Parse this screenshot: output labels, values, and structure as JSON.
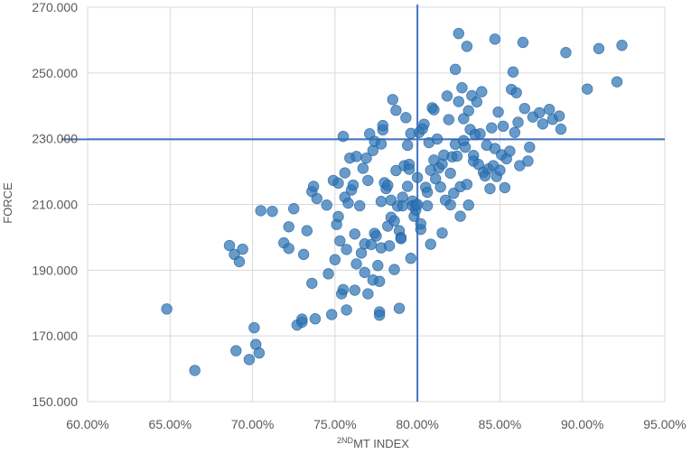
{
  "chart_data": {
    "type": "scatter",
    "xlabel_sup": "2ND",
    "xlabel_main": "MT INDEX",
    "ylabel": "FORCE",
    "xlim": [
      0.6,
      0.95
    ],
    "ylim": [
      150,
      270
    ],
    "x_ticks": [
      0.6,
      0.65,
      0.7,
      0.75,
      0.8,
      0.85,
      0.9,
      0.95
    ],
    "x_tick_labels": [
      "60.00%",
      "65.00%",
      "70.00%",
      "75.00%",
      "80.00%",
      "85.00%",
      "90.00%",
      "95.00%"
    ],
    "y_ticks": [
      150,
      170,
      190,
      210,
      230,
      250,
      270
    ],
    "y_tick_labels": [
      "150.000",
      "170.000",
      "190.000",
      "210.000",
      "230.000",
      "250.000",
      "270.000"
    ],
    "grid": true,
    "point_color": "#2e75b6",
    "reference_color": "#4472c4",
    "reference_lines": {
      "x": 0.8,
      "y": 229.8
    },
    "points": [
      [
        0.648,
        178.2
      ],
      [
        0.665,
        159.5
      ],
      [
        0.686,
        197.5
      ],
      [
        0.689,
        194.8
      ],
      [
        0.69,
        165.5
      ],
      [
        0.692,
        192.6
      ],
      [
        0.694,
        196.4
      ],
      [
        0.698,
        162.8
      ],
      [
        0.701,
        172.5
      ],
      [
        0.702,
        167.4
      ],
      [
        0.704,
        164.8
      ],
      [
        0.705,
        208.1
      ],
      [
        0.712,
        207.9
      ],
      [
        0.719,
        198.3
      ],
      [
        0.722,
        203.2
      ],
      [
        0.722,
        196.6
      ],
      [
        0.725,
        208.7
      ],
      [
        0.727,
        173.3
      ],
      [
        0.73,
        174.2
      ],
      [
        0.73,
        175.1
      ],
      [
        0.731,
        194.8
      ],
      [
        0.733,
        202.0
      ],
      [
        0.736,
        186.0
      ],
      [
        0.736,
        213.9
      ],
      [
        0.737,
        215.5
      ],
      [
        0.738,
        175.2
      ],
      [
        0.739,
        211.8
      ],
      [
        0.745,
        209.8
      ],
      [
        0.746,
        188.9
      ],
      [
        0.748,
        176.5
      ],
      [
        0.749,
        217.3
      ],
      [
        0.75,
        193.2
      ],
      [
        0.751,
        203.9
      ],
      [
        0.752,
        206.3
      ],
      [
        0.752,
        216.5
      ],
      [
        0.753,
        198.9
      ],
      [
        0.754,
        182.8
      ],
      [
        0.755,
        184.1
      ],
      [
        0.755,
        230.7
      ],
      [
        0.756,
        212.2
      ],
      [
        0.756,
        219.6
      ],
      [
        0.757,
        196.3
      ],
      [
        0.757,
        177.9
      ],
      [
        0.758,
        210.4
      ],
      [
        0.759,
        224.1
      ],
      [
        0.76,
        214.4
      ],
      [
        0.761,
        215.9
      ],
      [
        0.762,
        201.0
      ],
      [
        0.762,
        183.9
      ],
      [
        0.763,
        191.9
      ],
      [
        0.763,
        224.6
      ],
      [
        0.765,
        209.6
      ],
      [
        0.766,
        195.2
      ],
      [
        0.767,
        221.0
      ],
      [
        0.768,
        198.0
      ],
      [
        0.768,
        189.3
      ],
      [
        0.769,
        224.1
      ],
      [
        0.77,
        217.3
      ],
      [
        0.77,
        182.8
      ],
      [
        0.771,
        231.5
      ],
      [
        0.772,
        197.8
      ],
      [
        0.773,
        187.0
      ],
      [
        0.773,
        226.4
      ],
      [
        0.774,
        229.2
      ],
      [
        0.774,
        201.2
      ],
      [
        0.775,
        200.4
      ],
      [
        0.776,
        191.4
      ],
      [
        0.777,
        177.3
      ],
      [
        0.777,
        176.3
      ],
      [
        0.777,
        186.6
      ],
      [
        0.778,
        196.8
      ],
      [
        0.778,
        210.9
      ],
      [
        0.778,
        228.4
      ],
      [
        0.779,
        232.7
      ],
      [
        0.779,
        234.0
      ],
      [
        0.78,
        216.6
      ],
      [
        0.781,
        214.8
      ],
      [
        0.782,
        203.4
      ],
      [
        0.782,
        215.8
      ],
      [
        0.783,
        197.4
      ],
      [
        0.784,
        211.3
      ],
      [
        0.784,
        206.1
      ],
      [
        0.785,
        241.9
      ],
      [
        0.786,
        205.0
      ],
      [
        0.786,
        190.2
      ],
      [
        0.787,
        238.6
      ],
      [
        0.787,
        220.3
      ],
      [
        0.788,
        209.5
      ],
      [
        0.789,
        202.0
      ],
      [
        0.789,
        178.4
      ],
      [
        0.79,
        199.9
      ],
      [
        0.79,
        199.6
      ],
      [
        0.791,
        212.2
      ],
      [
        0.791,
        209.6
      ],
      [
        0.792,
        221.8
      ],
      [
        0.793,
        236.4
      ],
      [
        0.794,
        228.0
      ],
      [
        0.794,
        215.5
      ],
      [
        0.795,
        222.2
      ],
      [
        0.795,
        220.7
      ],
      [
        0.796,
        231.6
      ],
      [
        0.796,
        193.6
      ],
      [
        0.797,
        211.0
      ],
      [
        0.797,
        209.6
      ],
      [
        0.798,
        206.4
      ],
      [
        0.799,
        208.3
      ],
      [
        0.799,
        209.8
      ],
      [
        0.8,
        210.0
      ],
      [
        0.8,
        218.2
      ],
      [
        0.801,
        231.9
      ],
      [
        0.802,
        202.4
      ],
      [
        0.802,
        204.1
      ],
      [
        0.803,
        233.0
      ],
      [
        0.804,
        234.4
      ],
      [
        0.805,
        215.2
      ],
      [
        0.806,
        213.7
      ],
      [
        0.806,
        209.6
      ],
      [
        0.807,
        228.8
      ],
      [
        0.808,
        197.9
      ],
      [
        0.808,
        220.4
      ],
      [
        0.809,
        239.4
      ],
      [
        0.81,
        223.5
      ],
      [
        0.81,
        238.8
      ],
      [
        0.811,
        217.8
      ],
      [
        0.812,
        229.9
      ],
      [
        0.813,
        221.1
      ],
      [
        0.814,
        215.3
      ],
      [
        0.815,
        201.3
      ],
      [
        0.815,
        222.3
      ],
      [
        0.816,
        225.0
      ],
      [
        0.817,
        211.3
      ],
      [
        0.818,
        243.0
      ],
      [
        0.819,
        235.8
      ],
      [
        0.82,
        219.5
      ],
      [
        0.82,
        209.9
      ],
      [
        0.821,
        224.5
      ],
      [
        0.822,
        213.4
      ],
      [
        0.823,
        251.1
      ],
      [
        0.823,
        228.3
      ],
      [
        0.824,
        224.7
      ],
      [
        0.825,
        262.0
      ],
      [
        0.825,
        241.3
      ],
      [
        0.826,
        215.4
      ],
      [
        0.826,
        206.4
      ],
      [
        0.827,
        245.5
      ],
      [
        0.828,
        229.4
      ],
      [
        0.828,
        236.1
      ],
      [
        0.829,
        227.4
      ],
      [
        0.83,
        258.1
      ],
      [
        0.83,
        216.1
      ],
      [
        0.831,
        238.5
      ],
      [
        0.831,
        209.8
      ],
      [
        0.832,
        232.8
      ],
      [
        0.833,
        243.1
      ],
      [
        0.834,
        224.9
      ],
      [
        0.834,
        223.2
      ],
      [
        0.835,
        231.3
      ],
      [
        0.836,
        241.2
      ],
      [
        0.837,
        222.2
      ],
      [
        0.838,
        231.5
      ],
      [
        0.839,
        244.3
      ],
      [
        0.84,
        219.8
      ],
      [
        0.841,
        218.7
      ],
      [
        0.842,
        228.0
      ],
      [
        0.843,
        220.8
      ],
      [
        0.844,
        214.8
      ],
      [
        0.845,
        233.3
      ],
      [
        0.846,
        221.8
      ],
      [
        0.847,
        260.3
      ],
      [
        0.847,
        227.0
      ],
      [
        0.848,
        218.5
      ],
      [
        0.849,
        238.1
      ],
      [
        0.85,
        220.4
      ],
      [
        0.851,
        225.1
      ],
      [
        0.852,
        233.8
      ],
      [
        0.853,
        215.1
      ],
      [
        0.854,
        223.9
      ],
      [
        0.856,
        226.2
      ],
      [
        0.857,
        245.0
      ],
      [
        0.858,
        250.3
      ],
      [
        0.859,
        231.9
      ],
      [
        0.86,
        244.0
      ],
      [
        0.861,
        235.0
      ],
      [
        0.862,
        221.8
      ],
      [
        0.864,
        259.3
      ],
      [
        0.865,
        239.2
      ],
      [
        0.867,
        223.2
      ],
      [
        0.868,
        227.4
      ],
      [
        0.87,
        236.6
      ],
      [
        0.874,
        237.9
      ],
      [
        0.876,
        234.5
      ],
      [
        0.88,
        238.9
      ],
      [
        0.882,
        235.9
      ],
      [
        0.886,
        236.9
      ],
      [
        0.887,
        232.9
      ],
      [
        0.89,
        256.2
      ],
      [
        0.903,
        245.1
      ],
      [
        0.91,
        257.4
      ],
      [
        0.921,
        247.3
      ],
      [
        0.924,
        258.4
      ]
    ]
  }
}
